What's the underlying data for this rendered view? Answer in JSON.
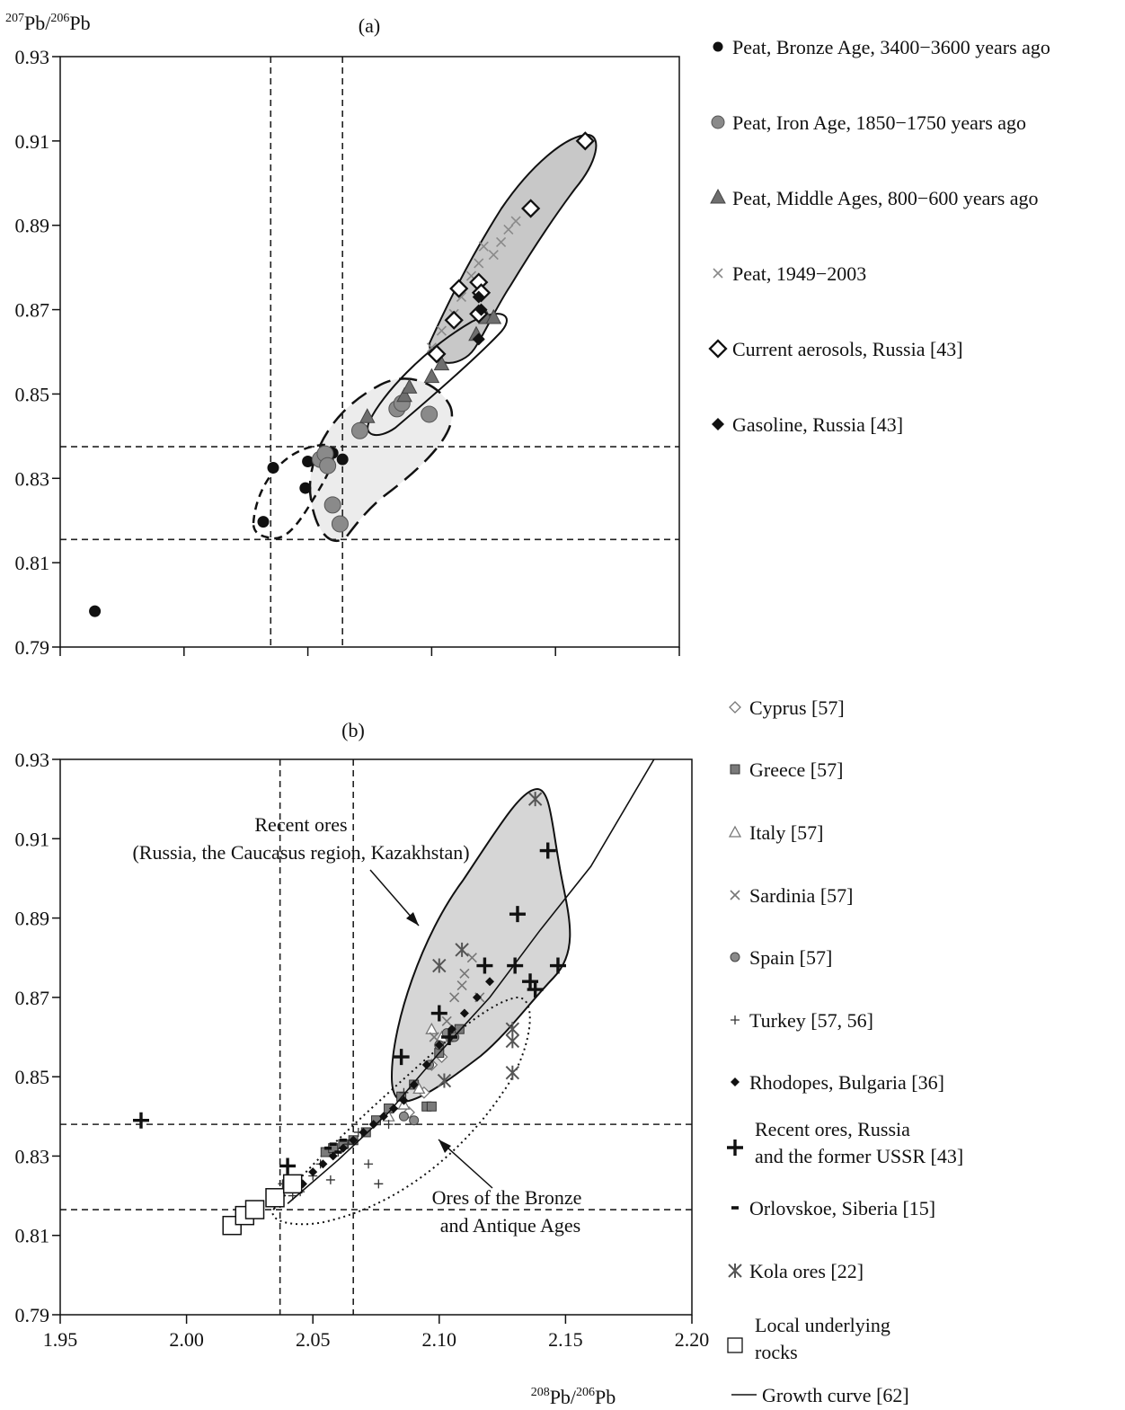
{
  "chart_data": [
    {
      "type": "scatter",
      "panel_label": "(a)",
      "ylabel": "207Pb/206Pb",
      "xlim": [
        1.95,
        2.2
      ],
      "ylim": [
        0.79,
        0.93
      ],
      "y_ticks": [
        "0.93",
        "0.91",
        "0.89",
        "0.87",
        "0.85",
        "0.83",
        "0.81",
        "0.79"
      ],
      "grid": false,
      "legend_placement": "right",
      "reference_lines": {
        "x": [
          2.035,
          2.064
        ],
        "y": [
          0.8375,
          0.8155
        ]
      },
      "series": [
        {
          "name": "Peat, Bronze Age, 3400−3600 years ago",
          "marker": "filled-circle",
          "color": "#111111",
          "x": [
            1.964,
            2.032,
            2.036,
            2.049,
            2.05,
            2.06,
            2.064
          ],
          "y": [
            0.7985,
            0.8197,
            0.8325,
            0.8277,
            0.834,
            0.836,
            0.8345
          ]
        },
        {
          "name": "Peat, Iron Age, 1850−1750 years ago",
          "marker": "gray-circle",
          "color": "#8a8a8a",
          "x": [
            2.055,
            2.063,
            2.057,
            2.06,
            2.071,
            2.086,
            2.088,
            2.099,
            2.058
          ],
          "y": [
            0.8345,
            0.8192,
            0.8358,
            0.8237,
            0.8413,
            0.8465,
            0.8478,
            0.8452,
            0.833
          ]
        },
        {
          "name": "Peat, Middle Ages, 800−600 years ago",
          "marker": "gray-triangle",
          "color": "#6e6e6e",
          "x": [
            2.074,
            2.089,
            2.091,
            2.1,
            2.104,
            2.118,
            2.122,
            2.125
          ],
          "y": [
            0.8445,
            0.8495,
            0.8515,
            0.854,
            0.857,
            0.864,
            0.868,
            0.868
          ]
        },
        {
          "name": "Peat, 1949−2003",
          "marker": "cross",
          "color": "#8a8a8a",
          "x": [
            2.1,
            2.104,
            2.109,
            2.112,
            2.116,
            2.119,
            2.121,
            2.125,
            2.128,
            2.131,
            2.134
          ],
          "y": [
            0.861,
            0.865,
            0.869,
            0.873,
            0.878,
            0.881,
            0.885,
            0.883,
            0.886,
            0.889,
            0.891
          ]
        },
        {
          "name": "Current aerosols, Russia [43]",
          "marker": "open-diamond",
          "color": "#111111",
          "x": [
            2.109,
            2.111,
            2.119,
            2.12,
            2.119,
            2.102,
            2.14,
            2.162
          ],
          "y": [
            0.8675,
            0.875,
            0.8765,
            0.874,
            0.869,
            0.8595,
            0.894,
            0.91
          ]
        },
        {
          "name": "Gasoline, Russia [43]",
          "marker": "filled-diamond",
          "color": "#111111",
          "x": [
            2.119,
            2.119,
            2.12
          ],
          "y": [
            0.873,
            0.863,
            0.87
          ]
        }
      ]
    },
    {
      "type": "scatter",
      "panel_label": "(b)",
      "xlabel": "208Pb/206Pb",
      "xlim": [
        1.95,
        2.2
      ],
      "ylim": [
        0.79,
        0.93
      ],
      "x_ticks": [
        "1.95",
        "2.00",
        "2.05",
        "2.10",
        "2.15",
        "2.20"
      ],
      "y_ticks": [
        "0.93",
        "0.91",
        "0.89",
        "0.87",
        "0.85",
        "0.83",
        "0.81",
        "0.79"
      ],
      "grid": false,
      "legend_placement": "right",
      "reference_lines": {
        "x": [
          2.037,
          2.066
        ],
        "y": [
          0.838,
          0.8165
        ]
      },
      "annotations": [
        {
          "lines": [
            "Recent ores",
            "(Russia, the Caucasus region, Kazakhstan)"
          ]
        },
        {
          "lines": [
            "Ores of the Bronze",
            "and Antique Ages"
          ]
        }
      ],
      "series": [
        {
          "name": "Cyprus [57]",
          "marker": "open-diamond-small",
          "color": "#777777",
          "x": [
            2.088,
            2.094,
            2.097,
            2.101
          ],
          "y": [
            0.841,
            0.846,
            0.853,
            0.855
          ]
        },
        {
          "name": "Greece [57]",
          "marker": "gray-square",
          "color": "#7a7a7a",
          "x": [
            2.055,
            2.058,
            2.062,
            2.066,
            2.071,
            2.075,
            2.08,
            2.085,
            2.09,
            2.095,
            2.097,
            2.1,
            2.104,
            2.108
          ],
          "y": [
            0.831,
            0.832,
            0.833,
            0.834,
            0.836,
            0.839,
            0.842,
            0.845,
            0.848,
            0.8425,
            0.8425,
            0.856,
            0.86,
            0.862
          ]
        },
        {
          "name": "Italy [57]",
          "marker": "open-triangle",
          "color": "#777777",
          "x": [
            2.08,
            2.086,
            2.092,
            2.097,
            2.101
          ],
          "y": [
            0.84,
            0.843,
            0.847,
            0.862,
            0.86
          ]
        },
        {
          "name": "Sardinia [57]",
          "marker": "cross",
          "color": "#777777",
          "x": [
            2.098,
            2.103,
            2.106,
            2.109,
            2.11,
            2.113,
            2.116
          ],
          "y": [
            0.86,
            0.864,
            0.87,
            0.873,
            0.876,
            0.88,
            0.87
          ]
        },
        {
          "name": "Spain [57]",
          "marker": "gray-circle-small",
          "color": "#8a8a8a",
          "x": [
            2.086,
            2.09,
            2.096,
            2.1,
            2.103,
            2.106
          ],
          "y": [
            0.84,
            0.839,
            0.853,
            0.858,
            0.861,
            0.86
          ]
        },
        {
          "name": "Turkey [57, 56]",
          "marker": "thin-plus",
          "color": "#333333",
          "x": [
            2.038,
            2.042,
            2.045,
            2.05,
            2.053,
            2.057,
            2.06,
            2.064,
            2.068,
            2.072,
            2.076,
            2.08,
            2.082,
            2.086
          ],
          "y": [
            0.823,
            0.82,
            0.821,
            0.825,
            0.828,
            0.824,
            0.831,
            0.833,
            0.836,
            0.828,
            0.823,
            0.838,
            0.842,
            0.846
          ]
        },
        {
          "name": "Rhodopes, Bulgaria [36]",
          "marker": "filled-diamond-small",
          "color": "#111111",
          "x": [
            2.046,
            2.05,
            2.054,
            2.058,
            2.062,
            2.066,
            2.07,
            2.074,
            2.078,
            2.082,
            2.086,
            2.09,
            2.095,
            2.1,
            2.105,
            2.11,
            2.115,
            2.12
          ],
          "y": [
            0.823,
            0.826,
            0.828,
            0.83,
            0.832,
            0.834,
            0.836,
            0.838,
            0.84,
            0.842,
            0.844,
            0.848,
            0.853,
            0.858,
            0.862,
            0.866,
            0.87,
            0.874
          ]
        },
        {
          "name": "Recent ores, Russia and the former USSR [43]",
          "marker": "bold-plus",
          "color": "#111111",
          "x": [
            1.982,
            2.04,
            2.085,
            2.1,
            2.104,
            2.118,
            2.13,
            2.131,
            2.136,
            2.138,
            2.143,
            2.147
          ],
          "y": [
            0.839,
            0.8275,
            0.855,
            0.866,
            0.86,
            0.878,
            0.878,
            0.891,
            0.874,
            0.872,
            0.907,
            0.878
          ]
        },
        {
          "name": "Orlovskoe, Siberia [15]",
          "marker": "dash",
          "color": "#111111",
          "x": [
            2.056,
            2.058,
            2.06,
            2.062
          ],
          "y": [
            0.832,
            0.833,
            0.831,
            0.834
          ]
        },
        {
          "name": "Kola ores [22]",
          "marker": "asterisk",
          "color": "#555555",
          "x": [
            2.1,
            2.102,
            2.109,
            2.129,
            2.129,
            2.129,
            2.138
          ],
          "y": [
            0.878,
            0.849,
            0.882,
            0.851,
            0.859,
            0.862,
            0.92
          ]
        },
        {
          "name": "Local underlying rocks",
          "marker": "open-square",
          "color": "#111111",
          "x": [
            2.018,
            2.023,
            2.027,
            2.035,
            2.042
          ],
          "y": [
            0.8125,
            0.815,
            0.8165,
            0.8195,
            0.823
          ]
        },
        {
          "name": "Growth curve [62]",
          "marker": "line",
          "color": "#111111",
          "x": [
            2.04,
            2.06,
            2.08,
            2.1,
            2.12,
            2.14,
            2.16,
            2.185
          ],
          "y": [
            0.818,
            0.829,
            0.841,
            0.856,
            0.87,
            0.887,
            0.903,
            0.93
          ]
        }
      ]
    }
  ]
}
